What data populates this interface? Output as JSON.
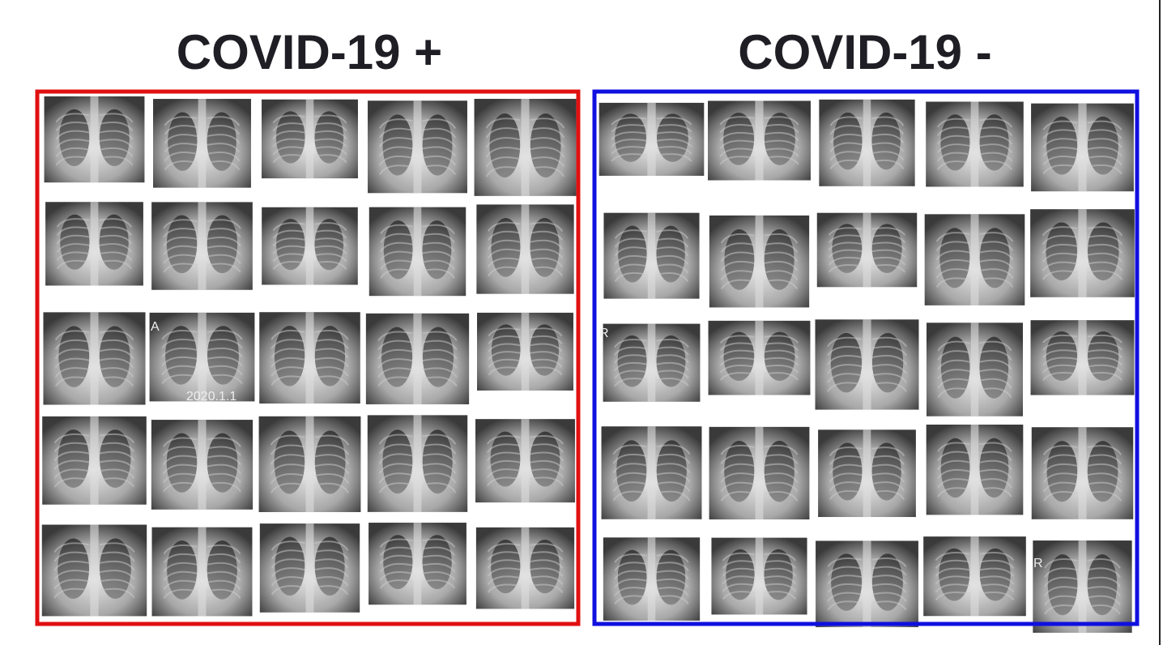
{
  "panels": [
    {
      "title": "COVID-19 +",
      "labels": [
        "A",
        "2020.1.1"
      ]
    },
    {
      "title": "COVID-19 -",
      "labels": [
        "R",
        "R"
      ]
    }
  ]
}
